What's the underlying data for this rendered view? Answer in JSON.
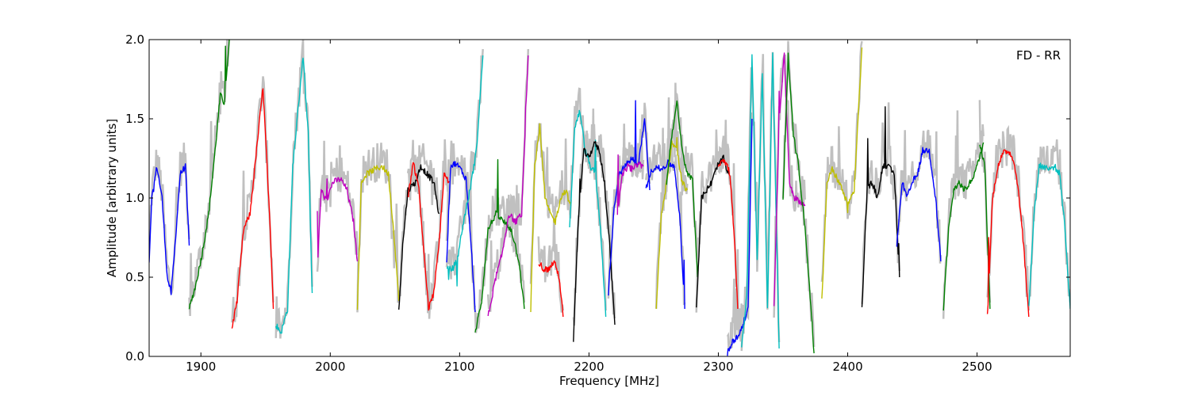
{
  "chart_data": {
    "type": "line",
    "title": "",
    "xlabel": "Frequency [MHz]",
    "ylabel": "Amplitude [arbitrary units]",
    "xlim": [
      1860,
      2572
    ],
    "ylim": [
      0.0,
      2.0
    ],
    "xticks": [
      {
        "value": 1900,
        "label": "1900"
      },
      {
        "value": 2000,
        "label": "2000"
      },
      {
        "value": 2100,
        "label": "2100"
      },
      {
        "value": 2200,
        "label": "2200"
      },
      {
        "value": 2300,
        "label": "2300"
      },
      {
        "value": 2400,
        "label": "2400"
      },
      {
        "value": 2500,
        "label": "2500"
      }
    ],
    "yticks": [
      {
        "value": 0.0,
        "label": "0.0"
      },
      {
        "value": 0.5,
        "label": "0.5"
      },
      {
        "value": 1.0,
        "label": "1.0"
      },
      {
        "value": 1.5,
        "label": "1.5"
      },
      {
        "value": 2.0,
        "label": "2.0"
      }
    ],
    "grid": false,
    "annotation": "FD - RR",
    "annotation_position": "top-right",
    "background_color": "#c0c0c0",
    "series": [
      {
        "color": "#0000ff",
        "x": [
          1860,
          1862,
          1866,
          1870,
          1874,
          1877,
          1880,
          1884,
          1888,
          1891
        ],
        "y": [
          0.6,
          1.0,
          1.2,
          1.0,
          0.5,
          0.4,
          0.7,
          1.15,
          1.2,
          0.7
        ]
      },
      {
        "color": "#008000",
        "x": [
          1891,
          1896,
          1901,
          1906,
          1911,
          1915,
          1918,
          1922
        ],
        "y": [
          0.3,
          0.45,
          0.65,
          0.9,
          1.3,
          1.65,
          1.6,
          2.0
        ]
      },
      {
        "color": "#ff0000",
        "x": [
          1924,
          1928,
          1933,
          1938,
          1943,
          1948,
          1953,
          1956
        ],
        "y": [
          0.18,
          0.35,
          0.8,
          0.9,
          1.3,
          1.7,
          0.9,
          0.3
        ]
      },
      {
        "color": "#00bfbf",
        "x": [
          1958,
          1962,
          1967,
          1971,
          1975,
          1979,
          1983,
          1986
        ],
        "y": [
          0.2,
          0.15,
          0.3,
          1.2,
          1.55,
          1.9,
          1.4,
          0.4
        ]
      },
      {
        "color": "#bf00bf",
        "x": [
          1990,
          1993,
          1997,
          2002,
          2008,
          2013,
          2018,
          2021
        ],
        "y": [
          0.55,
          1.05,
          0.98,
          1.1,
          1.12,
          1.05,
          0.85,
          0.6
        ]
      },
      {
        "color": "#bfbf00",
        "x": [
          2021,
          2024,
          2028,
          2034,
          2040,
          2045,
          2050,
          2053
        ],
        "y": [
          0.3,
          1.1,
          1.15,
          1.18,
          1.2,
          1.15,
          0.7,
          0.35
        ]
      },
      {
        "color": "#000000",
        "x": [
          2053,
          2056,
          2060,
          2066,
          2070,
          2075,
          2080,
          2084
        ],
        "y": [
          0.3,
          0.7,
          1.05,
          1.1,
          1.2,
          1.15,
          1.1,
          0.9
        ]
      },
      {
        "color": "#ff0000",
        "x": [
          2060,
          2064,
          2068,
          2072,
          2076,
          2080,
          2084,
          2088,
          2092
        ],
        "y": [
          1.0,
          1.22,
          1.1,
          0.7,
          0.3,
          0.4,
          0.7,
          1.15,
          1.1
        ]
      },
      {
        "color": "#0000ff",
        "x": [
          2090,
          2093,
          2097,
          2101,
          2105,
          2109,
          2112
        ],
        "y": [
          0.6,
          1.2,
          1.22,
          1.18,
          1.12,
          0.7,
          0.28
        ]
      },
      {
        "color": "#00bfbf",
        "x": [
          2090,
          2094,
          2098,
          2103,
          2108,
          2113,
          2118
        ],
        "y": [
          0.55,
          0.55,
          0.6,
          0.85,
          1.05,
          1.3,
          1.9
        ]
      },
      {
        "color": "#008000",
        "x": [
          2112,
          2117,
          2122,
          2128,
          2134,
          2140,
          2146,
          2150
        ],
        "y": [
          0.15,
          0.35,
          0.8,
          0.9,
          0.85,
          0.8,
          0.6,
          0.3
        ]
      },
      {
        "color": "#bf00bf",
        "x": [
          2122,
          2128,
          2133,
          2138,
          2143,
          2148,
          2153
        ],
        "y": [
          0.25,
          0.5,
          0.65,
          0.9,
          0.85,
          0.9,
          1.9
        ]
      },
      {
        "color": "#bfbf00",
        "x": [
          2155,
          2158,
          2162,
          2166,
          2170,
          2174,
          2178,
          2182,
          2186
        ],
        "y": [
          0.3,
          1.2,
          1.45,
          1.0,
          0.9,
          0.85,
          1.0,
          1.05,
          0.95
        ]
      },
      {
        "color": "#ff0000",
        "x": [
          2161,
          2165,
          2169,
          2173,
          2177,
          2180
        ],
        "y": [
          0.6,
          0.55,
          0.55,
          0.6,
          0.5,
          0.25
        ]
      },
      {
        "color": "#00bfbf",
        "x": [
          2185,
          2189,
          2193,
          2197,
          2201,
          2205,
          2209,
          2213
        ],
        "y": [
          0.8,
          1.45,
          1.55,
          1.3,
          1.2,
          1.15,
          0.8,
          0.25
        ]
      },
      {
        "color": "#000000",
        "x": [
          2188,
          2192,
          2196,
          2200,
          2204,
          2208,
          2212,
          2216,
          2220
        ],
        "y": [
          0.1,
          0.9,
          1.3,
          1.25,
          1.35,
          1.3,
          1.1,
          0.7,
          0.2
        ]
      },
      {
        "color": "#0000ff",
        "x": [
          2215,
          2219,
          2223,
          2228,
          2233,
          2238,
          2243,
          2247
        ],
        "y": [
          0.4,
          0.9,
          1.15,
          1.2,
          1.25,
          1.2,
          1.5,
          1.05
        ]
      },
      {
        "color": "#bf00bf",
        "x": [
          2222,
          2226,
          2230,
          2234,
          2238,
          2242
        ],
        "y": [
          0.9,
          1.15,
          1.2,
          1.18,
          1.22,
          1.2
        ]
      },
      {
        "color": "#0000ff",
        "x": [
          2244,
          2247,
          2251,
          2256,
          2261,
          2266,
          2270,
          2274
        ],
        "y": [
          1.05,
          1.15,
          1.2,
          1.18,
          1.22,
          1.2,
          0.9,
          0.3
        ]
      },
      {
        "color": "#bfbf00",
        "x": [
          2252,
          2256,
          2260,
          2264,
          2268,
          2272,
          2276
        ],
        "y": [
          0.3,
          0.9,
          1.1,
          1.35,
          1.3,
          1.1,
          1.05
        ]
      },
      {
        "color": "#008000",
        "x": [
          2260,
          2264,
          2268,
          2272,
          2276,
          2280,
          2284
        ],
        "y": [
          1.1,
          1.4,
          1.6,
          1.3,
          1.15,
          1.12,
          0.5
        ]
      },
      {
        "color": "#000000",
        "x": [
          2283,
          2287,
          2291,
          2295,
          2299,
          2304,
          2308
        ],
        "y": [
          0.3,
          1.0,
          1.05,
          1.1,
          1.2,
          1.25,
          1.15
        ]
      },
      {
        "color": "#ff0000",
        "x": [
          2300,
          2303,
          2306,
          2309,
          2312,
          2315
        ],
        "y": [
          1.2,
          1.25,
          1.22,
          1.15,
          0.8,
          0.3
        ]
      },
      {
        "color": "#0000ff",
        "x": [
          2307,
          2311,
          2315,
          2319,
          2323,
          2326
        ],
        "y": [
          0.02,
          0.1,
          0.12,
          0.2,
          0.3,
          1.5
        ]
      },
      {
        "color": "#00bfbf",
        "x": [
          2318,
          2322,
          2326,
          2330,
          2334,
          2338,
          2342,
          2347
        ],
        "y": [
          0.05,
          0.4,
          1.9,
          0.6,
          1.8,
          0.3,
          1.9,
          0.05
        ]
      },
      {
        "color": "#bf00bf",
        "x": [
          2343,
          2347,
          2351,
          2355,
          2359,
          2363,
          2367
        ],
        "y": [
          0.3,
          1.5,
          1.9,
          1.1,
          1.0,
          0.98,
          0.95
        ]
      },
      {
        "color": "#008000",
        "x": [
          2350,
          2354,
          2358,
          2362,
          2366,
          2370,
          2374
        ],
        "y": [
          1.0,
          1.9,
          1.4,
          1.2,
          0.9,
          0.5,
          0.02
        ]
      },
      {
        "color": "#bfbf00",
        "x": [
          2380,
          2384,
          2388,
          2392,
          2396,
          2400,
          2405,
          2411
        ],
        "y": [
          0.35,
          1.1,
          1.18,
          1.12,
          1.05,
          0.95,
          1.05,
          1.95
        ]
      },
      {
        "color": "#000000",
        "x": [
          2411,
          2415,
          2419,
          2423,
          2427,
          2431,
          2436,
          2440
        ],
        "y": [
          0.3,
          1.05,
          1.1,
          1.0,
          1.2,
          1.2,
          1.15,
          0.5
        ]
      },
      {
        "color": "#0000ff",
        "x": [
          2438,
          2442,
          2446,
          2450,
          2454,
          2458,
          2463,
          2468,
          2472
        ],
        "y": [
          0.7,
          1.1,
          1.0,
          1.1,
          1.15,
          1.3,
          1.3,
          1.0,
          0.6
        ]
      },
      {
        "color": "#008000",
        "x": [
          2474,
          2478,
          2482,
          2486,
          2490,
          2495,
          2500,
          2505
        ],
        "y": [
          0.3,
          0.8,
          1.05,
          1.1,
          1.05,
          1.1,
          1.2,
          1.35
        ]
      },
      {
        "color": "#008000",
        "x": [
          2502,
          2506,
          2510
        ],
        "y": [
          1.35,
          1.2,
          0.3
        ]
      },
      {
        "color": "#ff0000",
        "x": [
          2508,
          2512,
          2516,
          2520,
          2524,
          2528,
          2532,
          2536,
          2540
        ],
        "y": [
          0.25,
          1.0,
          1.2,
          1.28,
          1.3,
          1.25,
          1.05,
          0.7,
          0.25
        ]
      },
      {
        "color": "#00bfbf",
        "x": [
          2540,
          2544,
          2548,
          2552,
          2556,
          2560,
          2564,
          2568,
          2572
        ],
        "y": [
          0.3,
          0.9,
          1.2,
          1.2,
          1.18,
          1.2,
          1.15,
          0.8,
          0.3
        ]
      }
    ]
  }
}
